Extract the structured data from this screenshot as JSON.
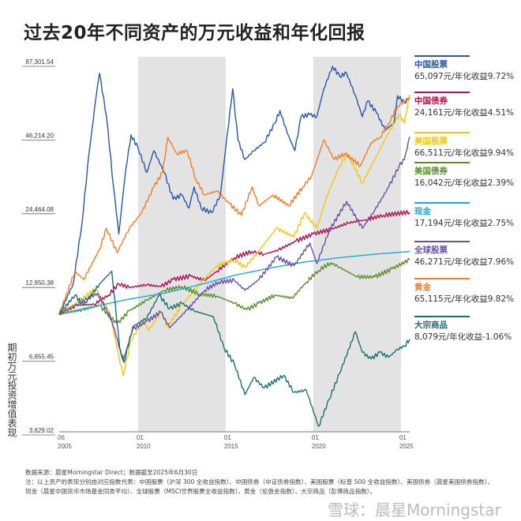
{
  "title": "过去20年不同资产的万元收益和年化回报",
  "chart_data": {
    "type": "line",
    "title": "过去20年不同资产的万元收益和年化回报",
    "ylabel": "期初万元投资增值表现",
    "yscale": "log",
    "ylim": [
      3629.02,
      87301.54
    ],
    "yticks": [
      "87,301.54",
      "46,214.20",
      "24,464.08",
      "12,950.38",
      "6,855.45",
      "3,629.02"
    ],
    "ytick_values": [
      87301.54,
      46214.2,
      24464.08,
      12950.38,
      6855.45,
      3629.02
    ],
    "xlim": [
      2005.5,
      2025.5
    ],
    "xticks": [
      {
        "m": "06",
        "y": "2005",
        "v": 2005.5
      },
      {
        "m": "01",
        "y": "2010",
        "v": 2010
      },
      {
        "m": "01",
        "y": "2015",
        "v": 2015
      },
      {
        "m": "01",
        "y": "2020",
        "v": 2020
      },
      {
        "m": "01",
        "y": "2025",
        "v": 2025
      }
    ],
    "shaded_periods": [
      [
        2010,
        2015
      ],
      [
        2020,
        2025
      ]
    ],
    "series": [
      {
        "name": "中国股票",
        "label": "65,097元/年化收益9.72%",
        "color": "#2a56a7",
        "points": [
          [
            2005.5,
            10000
          ],
          [
            2006.3,
            13000
          ],
          [
            2006.8,
            22000
          ],
          [
            2007.2,
            40000
          ],
          [
            2007.6,
            65000
          ],
          [
            2007.8,
            80000
          ],
          [
            2008.2,
            55000
          ],
          [
            2008.6,
            30000
          ],
          [
            2008.9,
            20000
          ],
          [
            2009.3,
            35000
          ],
          [
            2009.6,
            47000
          ],
          [
            2010,
            42000
          ],
          [
            2010.5,
            34000
          ],
          [
            2010.9,
            41000
          ],
          [
            2011.5,
            34000
          ],
          [
            2012,
            27000
          ],
          [
            2012.5,
            28000
          ],
          [
            2012.9,
            25000
          ],
          [
            2013.2,
            30000
          ],
          [
            2013.6,
            25000
          ],
          [
            2014.2,
            24000
          ],
          [
            2014.7,
            28000
          ],
          [
            2015,
            42000
          ],
          [
            2015.4,
            70000
          ],
          [
            2015.7,
            45000
          ],
          [
            2016.1,
            38000
          ],
          [
            2016.6,
            41000
          ],
          [
            2017.2,
            44000
          ],
          [
            2017.8,
            52000
          ],
          [
            2018.1,
            58000
          ],
          [
            2018.5,
            48000
          ],
          [
            2018.95,
            41000
          ],
          [
            2019.3,
            55000
          ],
          [
            2019.8,
            56000
          ],
          [
            2020.2,
            55000
          ],
          [
            2020.6,
            70000
          ],
          [
            2021.1,
            85000
          ],
          [
            2021.5,
            78000
          ],
          [
            2021.9,
            80000
          ],
          [
            2022.4,
            66000
          ],
          [
            2022.8,
            55000
          ],
          [
            2023.1,
            63000
          ],
          [
            2023.6,
            57000
          ],
          [
            2024.1,
            49000
          ],
          [
            2024.6,
            52000
          ],
          [
            2024.8,
            66000
          ],
          [
            2025.2,
            62000
          ],
          [
            2025.5,
            65097
          ]
        ]
      },
      {
        "name": "中国债券",
        "label": "24,161元/年化收益4.51%",
        "color": "#b0124f",
        "points": [
          [
            2005.5,
            10000
          ],
          [
            2006.5,
            10800
          ],
          [
            2007.5,
            10900
          ],
          [
            2008.3,
            11800
          ],
          [
            2008.9,
            13000
          ],
          [
            2009.5,
            12600
          ],
          [
            2010.5,
            12900
          ],
          [
            2011.3,
            12700
          ],
          [
            2012,
            13500
          ],
          [
            2013,
            13900
          ],
          [
            2013.8,
            13400
          ],
          [
            2014.5,
            14500
          ],
          [
            2015.5,
            16300
          ],
          [
            2016.5,
            17200
          ],
          [
            2017.2,
            16800
          ],
          [
            2018,
            17400
          ],
          [
            2019,
            18800
          ],
          [
            2020,
            20000
          ],
          [
            2021,
            20800
          ],
          [
            2022,
            22000
          ],
          [
            2023,
            22600
          ],
          [
            2024,
            23500
          ],
          [
            2025.5,
            24161
          ]
        ]
      },
      {
        "name": "美国股票",
        "label": "66,511元/年化收益9.94%",
        "color": "#f3c614",
        "points": [
          [
            2005.5,
            10000
          ],
          [
            2006.5,
            11000
          ],
          [
            2007.6,
            12500
          ],
          [
            2008.4,
            10000
          ],
          [
            2008.9,
            7000
          ],
          [
            2009.15,
            5900
          ],
          [
            2009.6,
            8000
          ],
          [
            2010.3,
            9500
          ],
          [
            2010.6,
            8700
          ],
          [
            2011.3,
            10200
          ],
          [
            2011.7,
            9000
          ],
          [
            2012.5,
            10800
          ],
          [
            2013.5,
            13000
          ],
          [
            2014.5,
            15200
          ],
          [
            2015.5,
            16000
          ],
          [
            2016.1,
            15000
          ],
          [
            2016.8,
            17000
          ],
          [
            2017.9,
            21000
          ],
          [
            2018.9,
            19500
          ],
          [
            2019.5,
            24000
          ],
          [
            2020.2,
            21000
          ],
          [
            2020.8,
            28000
          ],
          [
            2021.5,
            36000
          ],
          [
            2021.95,
            40000
          ],
          [
            2022.8,
            31000
          ],
          [
            2023.5,
            38000
          ],
          [
            2024.3,
            48000
          ],
          [
            2024.9,
            56000
          ],
          [
            2025.2,
            52000
          ],
          [
            2025.5,
            66511
          ]
        ]
      },
      {
        "name": "美国债券",
        "label": "16,042元/年化收益2.39%",
        "color": "#5a8c2e",
        "points": [
          [
            2005.5,
            10000
          ],
          [
            2006.8,
            10400
          ],
          [
            2007.8,
            10800
          ],
          [
            2008.8,
            9200
          ],
          [
            2009.5,
            10300
          ],
          [
            2010.5,
            11300
          ],
          [
            2011.5,
            12300
          ],
          [
            2012.5,
            12700
          ],
          [
            2013.5,
            11900
          ],
          [
            2014.5,
            11700
          ],
          [
            2015.5,
            11000
          ],
          [
            2016.2,
            10400
          ],
          [
            2016.9,
            11000
          ],
          [
            2017.8,
            11800
          ],
          [
            2018.8,
            11500
          ],
          [
            2019.6,
            13200
          ],
          [
            2020.3,
            14600
          ],
          [
            2021,
            15600
          ],
          [
            2021.5,
            15000
          ],
          [
            2022.5,
            13800
          ],
          [
            2023.5,
            13800
          ],
          [
            2024.5,
            14800
          ],
          [
            2025.5,
            16042
          ]
        ]
      },
      {
        "name": "现金",
        "label": "17,194元/年化收益2.75%",
        "color": "#1da8d6",
        "points": [
          [
            2005.5,
            10000
          ],
          [
            2007.5,
            10700
          ],
          [
            2009.5,
            11400
          ],
          [
            2011.5,
            12000
          ],
          [
            2013.5,
            12900
          ],
          [
            2015.5,
            14000
          ],
          [
            2017.5,
            14900
          ],
          [
            2019.5,
            15700
          ],
          [
            2021.5,
            16300
          ],
          [
            2023.5,
            16800
          ],
          [
            2025.5,
            17194
          ]
        ]
      },
      {
        "name": "全球股票",
        "label": "46,271元/年化收益7.96%",
        "color": "#6a50a8",
        "points": [
          [
            2005.5,
            10000
          ],
          [
            2006.5,
            10900
          ],
          [
            2007.7,
            12000
          ],
          [
            2008.5,
            9500
          ],
          [
            2009.15,
            6700
          ],
          [
            2009.7,
            8800
          ],
          [
            2010.5,
            9400
          ],
          [
            2011.3,
            10200
          ],
          [
            2011.8,
            8900
          ],
          [
            2012.8,
            10400
          ],
          [
            2013.8,
            12300
          ],
          [
            2014.6,
            13200
          ],
          [
            2015.5,
            13400
          ],
          [
            2016.1,
            12300
          ],
          [
            2016.9,
            13500
          ],
          [
            2017.9,
            16400
          ],
          [
            2018.9,
            15200
          ],
          [
            2019.8,
            18500
          ],
          [
            2020.2,
            15500
          ],
          [
            2020.9,
            20500
          ],
          [
            2021.9,
            26500
          ],
          [
            2022.8,
            21000
          ],
          [
            2023.5,
            24500
          ],
          [
            2024.3,
            30000
          ],
          [
            2024.9,
            36000
          ],
          [
            2025.2,
            38000
          ],
          [
            2025.5,
            46271
          ]
        ]
      },
      {
        "name": "黄金",
        "label": "65,115元/年化收益9.82%",
        "color": "#ef7d2e",
        "points": [
          [
            2005.5,
            10000
          ],
          [
            2006.4,
            14500
          ],
          [
            2006.9,
            13500
          ],
          [
            2007.8,
            17500
          ],
          [
            2008.2,
            21000
          ],
          [
            2008.8,
            17000
          ],
          [
            2009.5,
            21000
          ],
          [
            2010.2,
            24000
          ],
          [
            2010.9,
            30000
          ],
          [
            2011.4,
            34000
          ],
          [
            2011.7,
            46000
          ],
          [
            2012.2,
            40000
          ],
          [
            2012.8,
            41000
          ],
          [
            2013.3,
            32000
          ],
          [
            2013.8,
            28000
          ],
          [
            2014.5,
            29000
          ],
          [
            2015.2,
            26000
          ],
          [
            2015.9,
            23500
          ],
          [
            2016.5,
            30000
          ],
          [
            2016.9,
            25500
          ],
          [
            2017.7,
            28000
          ],
          [
            2018.6,
            25500
          ],
          [
            2019.4,
            30000
          ],
          [
            2019.9,
            33000
          ],
          [
            2020.6,
            45000
          ],
          [
            2021.2,
            38000
          ],
          [
            2021.8,
            40000
          ],
          [
            2022.7,
            36000
          ],
          [
            2023.3,
            44000
          ],
          [
            2023.8,
            46000
          ],
          [
            2024.3,
            52000
          ],
          [
            2024.8,
            60000
          ],
          [
            2025.5,
            65115
          ]
        ]
      },
      {
        "name": "大宗商品",
        "label": "8,079元/年化收益-1.06%",
        "color": "#1f6f6f",
        "points": [
          [
            2005.5,
            10000
          ],
          [
            2006.4,
            11800
          ],
          [
            2006.9,
            10800
          ],
          [
            2007.8,
            13000
          ],
          [
            2008.5,
            14500
          ],
          [
            2008.95,
            7500
          ],
          [
            2009.2,
            6600
          ],
          [
            2009.7,
            9000
          ],
          [
            2010.5,
            9700
          ],
          [
            2011.2,
            11800
          ],
          [
            2011.8,
            10500
          ],
          [
            2012.5,
            11000
          ],
          [
            2013.2,
            10300
          ],
          [
            2014.3,
            9800
          ],
          [
            2014.9,
            7500
          ],
          [
            2015.5,
            6500
          ],
          [
            2016.1,
            5000
          ],
          [
            2016.6,
            5800
          ],
          [
            2017.2,
            5300
          ],
          [
            2018.3,
            5900
          ],
          [
            2018.9,
            5100
          ],
          [
            2019.6,
            5200
          ],
          [
            2020.3,
            3800
          ],
          [
            2020.9,
            4800
          ],
          [
            2021.5,
            6000
          ],
          [
            2022.4,
            8600
          ],
          [
            2022.8,
            7200
          ],
          [
            2023.3,
            6800
          ],
          [
            2023.8,
            7200
          ],
          [
            2024.3,
            6900
          ],
          [
            2024.8,
            7400
          ],
          [
            2025.2,
            7600
          ],
          [
            2025.5,
            8079
          ]
        ]
      }
    ]
  },
  "notes": {
    "source": "数据来源：晨星Morningstar Direct；数据截至2025年6月30日",
    "detail": "注：以上资产的表现分别由对应指数代表：中国股票（沪深 300 全收益指数）、中国债券（中证债券指数）、美国股票（标普 500 全收益指数）、美国债券（晨星美国债券指数）、现金（晨星中国货币市场基金同类平均）、全球股票（MSCI世界股票全收益指数）、黄金（伦敦金指数）、大宗商品（彭博商品指数）。"
  },
  "watermark": "雪球：晨星Morningstar"
}
